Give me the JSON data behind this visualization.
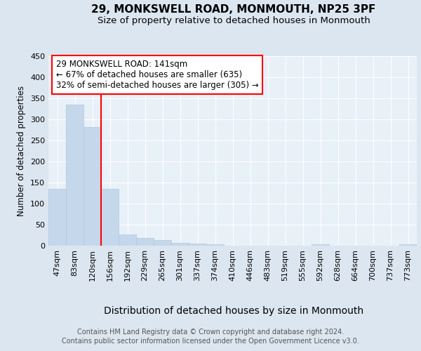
{
  "title": "29, MONKSWELL ROAD, MONMOUTH, NP25 3PF",
  "subtitle": "Size of property relative to detached houses in Monmouth",
  "xlabel": "Distribution of detached houses by size in Monmouth",
  "ylabel": "Number of detached properties",
  "categories": [
    "47sqm",
    "83sqm",
    "120sqm",
    "156sqm",
    "192sqm",
    "229sqm",
    "265sqm",
    "301sqm",
    "337sqm",
    "374sqm",
    "410sqm",
    "446sqm",
    "483sqm",
    "519sqm",
    "555sqm",
    "592sqm",
    "628sqm",
    "664sqm",
    "700sqm",
    "737sqm",
    "773sqm"
  ],
  "values": [
    135,
    335,
    282,
    135,
    27,
    18,
    13,
    6,
    5,
    3,
    0,
    0,
    0,
    0,
    0,
    3,
    0,
    0,
    0,
    0,
    3
  ],
  "bar_color": "#c5d8eb",
  "bar_edge_color": "#aec8de",
  "red_line_index": 2.5,
  "annotation_title": "29 MONKSWELL ROAD: 141sqm",
  "annotation_line1": "← 67% of detached houses are smaller (635)",
  "annotation_line2": "32% of semi-detached houses are larger (305) →",
  "ylim": [
    0,
    450
  ],
  "yticks": [
    0,
    50,
    100,
    150,
    200,
    250,
    300,
    350,
    400,
    450
  ],
  "footer_line1": "Contains HM Land Registry data © Crown copyright and database right 2024.",
  "footer_line2": "Contains public sector information licensed under the Open Government Licence v3.0.",
  "bg_color": "#dce6f0",
  "plot_bg_color": "#e8f0f8",
  "title_fontsize": 11,
  "subtitle_fontsize": 9.5,
  "xlabel_fontsize": 10,
  "ylabel_fontsize": 8.5,
  "tick_fontsize": 8,
  "annotation_fontsize": 8.5,
  "footer_fontsize": 7
}
